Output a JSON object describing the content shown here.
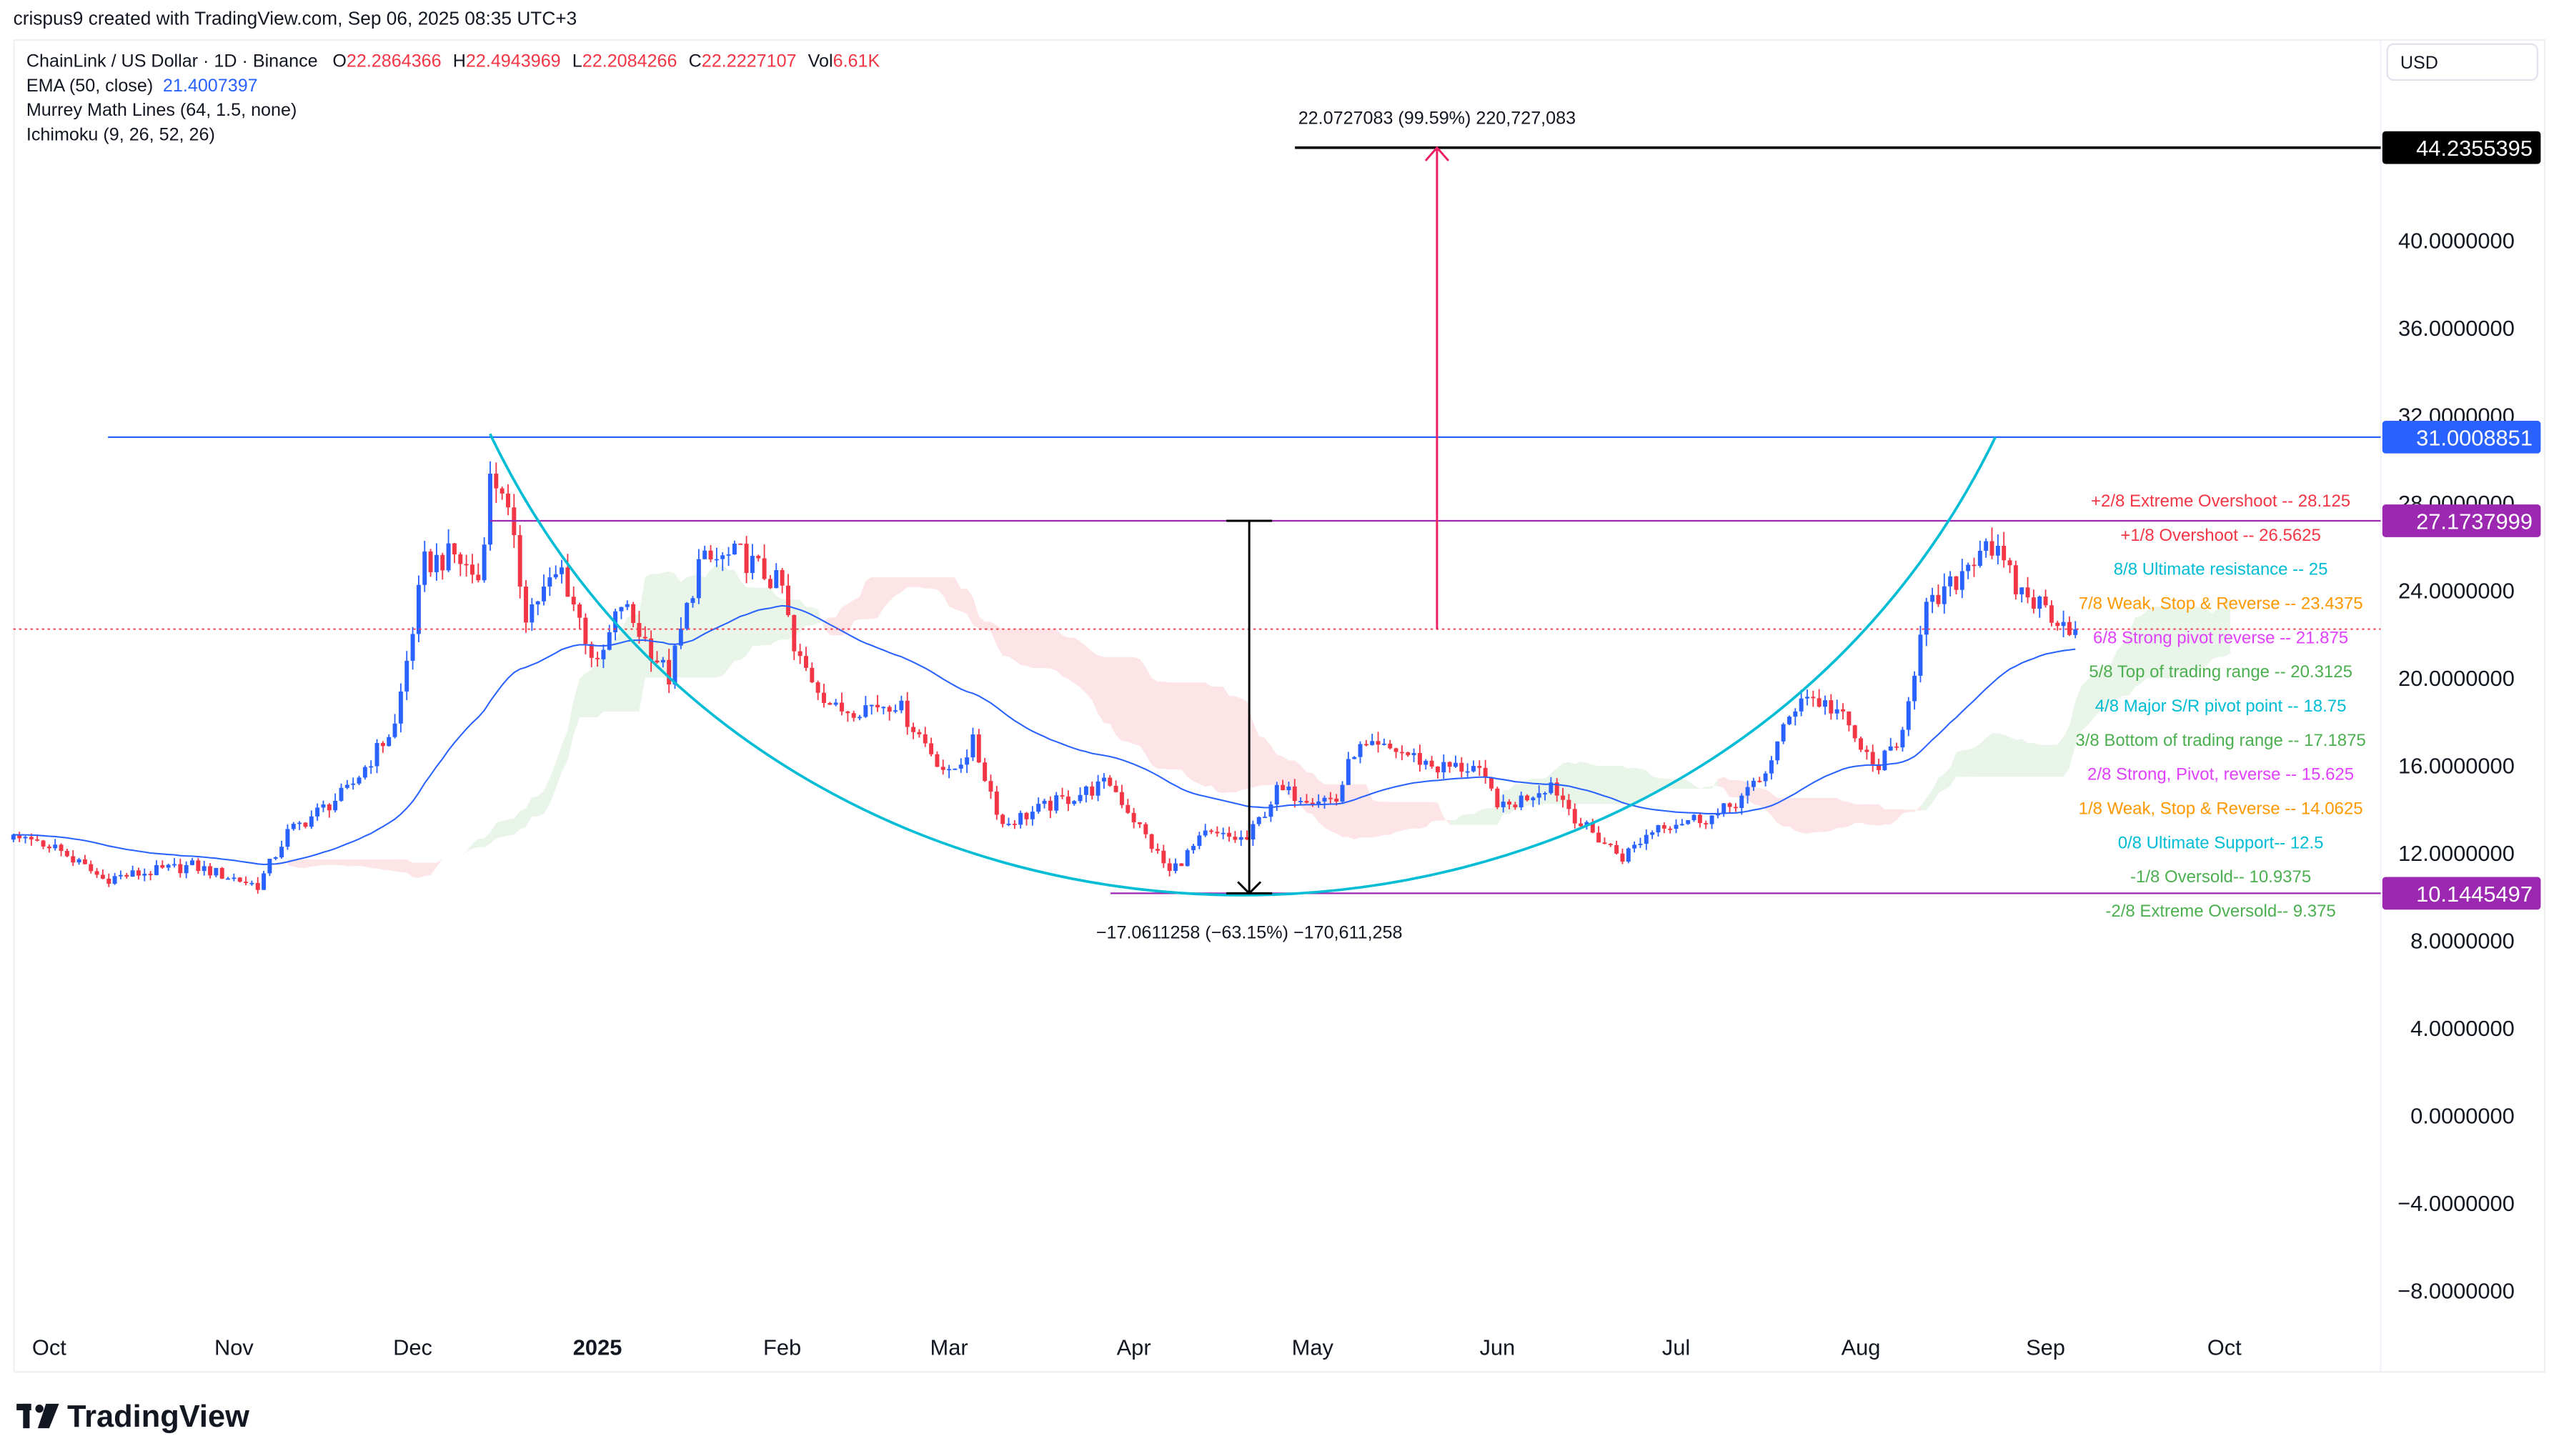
{
  "header": {
    "credit": "crispus9 created with TradingView.com, Sep 06, 2025 08:35 UTC+3"
  },
  "legend": {
    "symbol": "ChainLink / US Dollar · 1D · Binance",
    "o_label": "O",
    "o": "22.2864366",
    "h_label": "H",
    "h": "22.4943969",
    "l_label": "L",
    "l": "22.2084266",
    "c_label": "C",
    "c": "22.2227107",
    "vol_label": "Vol",
    "vol": "6.61K",
    "ema": "EMA (50, close)",
    "ema_value": "21.4007397",
    "murrey": "Murrey Math Lines (64, 1.5, none)",
    "ichimoku": "Ichimoku (9, 26, 52, 26)"
  },
  "currency_button": "USD",
  "logo": "TradingView",
  "price_axis": {
    "ticks": [
      "40.0000000",
      "36.0000000",
      "32.0000000",
      "28.0000000",
      "24.0000000",
      "20.0000000",
      "16.0000000",
      "12.0000000",
      "8.0000000",
      "4.0000000",
      "0.0000000",
      "−4.0000000",
      "−8.0000000"
    ],
    "tick_values": [
      40,
      36,
      32,
      28,
      24,
      20,
      16,
      12,
      8,
      4,
      0,
      -4,
      -8
    ],
    "badges": [
      {
        "value": 44.2355395,
        "label": "44.2355395",
        "color": "#000000"
      },
      {
        "value": 31.0008851,
        "label": "31.0008851",
        "color": "#2962ff"
      },
      {
        "value": 27.1737999,
        "label": "27.1737999",
        "color": "#9c27b0"
      },
      {
        "value": 10.1445497,
        "label": "10.1445497",
        "color": "#9c27b0"
      }
    ]
  },
  "time_axis": {
    "labels": [
      {
        "label": "Oct",
        "date": "2024-10-01"
      },
      {
        "label": "Nov",
        "date": "2024-11-01"
      },
      {
        "label": "Dec",
        "date": "2024-12-01"
      },
      {
        "label": "2025",
        "date": "2025-01-01",
        "bold": true
      },
      {
        "label": "Feb",
        "date": "2025-02-01"
      },
      {
        "label": "Mar",
        "date": "2025-03-01"
      },
      {
        "label": "Apr",
        "date": "2025-04-01"
      },
      {
        "label": "May",
        "date": "2025-05-01"
      },
      {
        "label": "Jun",
        "date": "2025-06-01"
      },
      {
        "label": "Jul",
        "date": "2025-07-01"
      },
      {
        "label": "Aug",
        "date": "2025-08-01"
      },
      {
        "label": "Sep",
        "date": "2025-09-01"
      },
      {
        "label": "Oct",
        "date": "2025-10-01"
      }
    ]
  },
  "murrey_levels": [
    {
      "text": "+2/8 Extreme Overshoot --  28.125",
      "value": 28.125,
      "color": "#f23645"
    },
    {
      "text": "+1/8 Overshoot --  26.5625",
      "value": 26.5625,
      "color": "#f23645"
    },
    {
      "text": "8/8 Ultimate resistance --  25",
      "value": 25,
      "color": "#00bcd4"
    },
    {
      "text": "7/8 Weak, Stop & Reverse --  23.4375",
      "value": 23.4375,
      "color": "#ff9800"
    },
    {
      "text": "6/8 Strong pivot reverse --  21.875",
      "value": 21.875,
      "color": "#e040fb"
    },
    {
      "text": "5/8 Top of trading range --  20.3125",
      "value": 20.3125,
      "color": "#4caf50"
    },
    {
      "text": "4/8 Major S/R pivot point --  18.75",
      "value": 18.75,
      "color": "#00bcd4"
    },
    {
      "text": "3/8 Bottom of trading range --  17.1875",
      "value": 17.1875,
      "color": "#4caf50"
    },
    {
      "text": "2/8 Strong, Pivot, reverse --  15.625",
      "value": 15.625,
      "color": "#e040fb"
    },
    {
      "text": "1/8 Weak, Stop & Reverse --  14.0625",
      "value": 14.0625,
      "color": "#ff9800"
    },
    {
      "text": "0/8 Ultimate Support--  12.5",
      "value": 12.5,
      "color": "#00bcd4"
    },
    {
      "text": "-1/8 Oversold--  10.9375",
      "value": 10.9375,
      "color": "#4caf50"
    },
    {
      "text": "-2/8 Extreme Oversold--  9.375",
      "value": 9.375,
      "color": "#4caf50"
    }
  ],
  "drawings": {
    "upper_measure": "22.0727083 (99.59%) 220,727,083",
    "lower_measure": "−17.0611258 (−63.15%) −170,611,258",
    "target_price": 44.2355395,
    "resistance": 31.0008851,
    "neckline": 27.1737999,
    "cup_low": 10.1445497,
    "current_price": 22.2227107
  },
  "colors": {
    "up": "#2962ff",
    "down": "#f23645",
    "ema": "#2962ff",
    "cup": "#00bcd4",
    "measure_up": "#e91e63",
    "cloud_up": "#4caf50",
    "cloud_down": "#f23645"
  },
  "chart_data": {
    "type": "candlestick",
    "title": "ChainLink / US Dollar · 1D · Binance",
    "ylim": [
      -10,
      48
    ],
    "grid": false,
    "price_path": [
      [
        "2024-09-25",
        12.6
      ],
      [
        "2024-10-01",
        12.4
      ],
      [
        "2024-10-10",
        10.8
      ],
      [
        "2024-10-25",
        11.4
      ],
      [
        "2024-11-05",
        10.5
      ],
      [
        "2024-11-10",
        12.9
      ],
      [
        "2024-11-20",
        14.8
      ],
      [
        "2024-11-28",
        17.8
      ],
      [
        "2024-12-03",
        25.2
      ],
      [
        "2024-12-08",
        25.6
      ],
      [
        "2024-12-12",
        24.5
      ],
      [
        "2024-12-14",
        29.0
      ],
      [
        "2024-12-16",
        28.8
      ],
      [
        "2024-12-20",
        23.0
      ],
      [
        "2024-12-26",
        24.9
      ],
      [
        "2025-01-01",
        20.4
      ],
      [
        "2025-01-05",
        23.4
      ],
      [
        "2025-01-13",
        20.0
      ],
      [
        "2025-01-18",
        25.2
      ],
      [
        "2025-01-25",
        25.6
      ],
      [
        "2025-02-01",
        24.1
      ],
      [
        "2025-02-03",
        21.1
      ],
      [
        "2025-02-10",
        18.5
      ],
      [
        "2025-02-20",
        18.9
      ],
      [
        "2025-03-01",
        15.5
      ],
      [
        "2025-03-05",
        17.0
      ],
      [
        "2025-03-10",
        13.3
      ],
      [
        "2025-03-20",
        14.4
      ],
      [
        "2025-03-28",
        15.2
      ],
      [
        "2025-04-07",
        11.1
      ],
      [
        "2025-04-13",
        12.8
      ],
      [
        "2025-04-20",
        12.6
      ],
      [
        "2025-04-25",
        14.8
      ],
      [
        "2025-05-05",
        14.4
      ],
      [
        "2025-05-08",
        16.7
      ],
      [
        "2025-05-15",
        16.7
      ],
      [
        "2025-05-22",
        15.9
      ],
      [
        "2025-05-28",
        15.9
      ],
      [
        "2025-06-02",
        14.0
      ],
      [
        "2025-06-10",
        15.2
      ],
      [
        "2025-06-15",
        13.3
      ],
      [
        "2025-06-22",
        11.8
      ],
      [
        "2025-06-28",
        13.3
      ],
      [
        "2025-07-08",
        13.7
      ],
      [
        "2025-07-15",
        15.2
      ],
      [
        "2025-07-22",
        19.3
      ],
      [
        "2025-07-28",
        18.5
      ],
      [
        "2025-08-03",
        15.9
      ],
      [
        "2025-08-07",
        16.7
      ],
      [
        "2025-08-12",
        23.0
      ],
      [
        "2025-08-16",
        24.1
      ],
      [
        "2025-08-22",
        26.4
      ],
      [
        "2025-08-27",
        24.1
      ],
      [
        "2025-09-06",
        22.22
      ]
    ]
  }
}
